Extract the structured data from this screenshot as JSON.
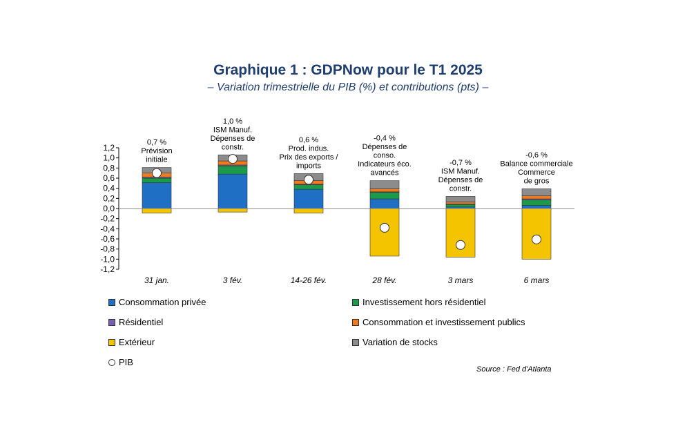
{
  "title": "Graphique 1 : GDPNow pour le T1 2025",
  "subtitle": "– Variation trimestrielle du PIB (%) et contributions (pts) –",
  "source": "Source : Fed d'Atlanta",
  "chart_data": {
    "type": "bar",
    "stacked": true,
    "categories": [
      "31 jan.",
      "3 fév.",
      "14-26 fév.",
      "28 fév.",
      "3 mars",
      "6 mars"
    ],
    "ylim": [
      -1.2,
      1.2
    ],
    "yticks": [
      "1,2",
      "1,0",
      "0,8",
      "0,6",
      "0,4",
      "0,2",
      "0,0",
      "-0,2",
      "-0,4",
      "-0,6",
      "-0,8",
      "-1,0",
      "-1,2"
    ],
    "series": [
      {
        "name": "Consommation privée",
        "color": "#1f6fc4",
        "values": [
          0.51,
          0.68,
          0.38,
          0.19,
          0.03,
          0.06
        ]
      },
      {
        "name": "Investissement hors résidentiel",
        "color": "#1a9a4a",
        "values": [
          0.09,
          0.16,
          0.09,
          0.13,
          0.05,
          0.11
        ]
      },
      {
        "name": "Résidentiel",
        "color": "#7b5fb0",
        "values": [
          0.02,
          0.02,
          0.01,
          0.01,
          0.01,
          0.02
        ]
      },
      {
        "name": "Consommation et investissement publics",
        "color": "#f07a1e",
        "values": [
          0.08,
          0.08,
          0.07,
          0.06,
          0.04,
          0.06
        ]
      },
      {
        "name": "Extérieur",
        "color": "#f5c400",
        "values": [
          -0.09,
          -0.07,
          -0.09,
          -0.94,
          -0.96,
          -1.0
        ]
      },
      {
        "name": "Variation de stocks",
        "color": "#8c8c8c",
        "values": [
          0.11,
          0.12,
          0.14,
          0.16,
          0.11,
          0.14
        ]
      }
    ],
    "pib": {
      "name": "PIB",
      "values": [
        0.7,
        0.98,
        0.57,
        -0.38,
        -0.72,
        -0.61
      ]
    },
    "annotations": [
      [
        "0,7 %",
        "Prévision",
        "initiale"
      ],
      [
        "1,0 %",
        "ISM Manuf.",
        "Dépenses de",
        "constr."
      ],
      [
        "0,6 %",
        "Prod. indus.",
        "Prix des exports /",
        "imports"
      ],
      [
        "-0,4 %",
        "Dépenses de",
        "conso.",
        "Indicateurs éco.",
        "avancés"
      ],
      [
        "-0,7 %",
        "ISM Manuf.",
        "Dépenses de",
        "constr."
      ],
      [
        "-0,6 %",
        "Balance commerciale",
        "Commerce",
        "de gros"
      ]
    ]
  }
}
